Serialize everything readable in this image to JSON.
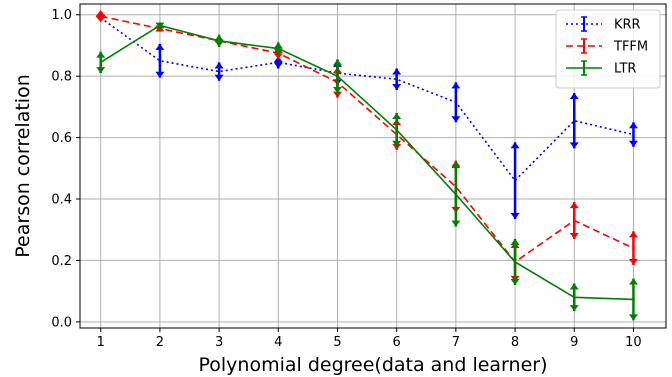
{
  "chart_data": {
    "type": "line",
    "title": "",
    "xlabel": "Polynomial degree(data and learner)",
    "ylabel": "Pearson correlation",
    "x": [
      1,
      2,
      3,
      4,
      5,
      6,
      7,
      8,
      9,
      10
    ],
    "xlim": [
      0.65,
      10.55
    ],
    "ylim": [
      -0.02,
      1.035
    ],
    "yticks": [
      "0.0",
      "0.2",
      "0.4",
      "0.6",
      "0.8",
      "1.0"
    ],
    "xticks": [
      "1",
      "2",
      "3",
      "4",
      "5",
      "6",
      "7",
      "8",
      "9",
      "10"
    ],
    "grid": true,
    "legend_position": "top-right",
    "series": [
      {
        "name": "KRR",
        "color": "#0000ff",
        "linestyle": "dotted",
        "values": [
          0.99,
          0.85,
          0.815,
          0.845,
          0.81,
          0.79,
          0.715,
          0.46,
          0.655,
          0.61
        ],
        "errors": [
          0.0,
          0.055,
          0.03,
          0.02,
          0.04,
          0.035,
          0.065,
          0.125,
          0.09,
          0.04
        ]
      },
      {
        "name": "TFFM",
        "color": "#ff0000",
        "linestyle": "dashed",
        "values": [
          0.995,
          0.955,
          0.915,
          0.875,
          0.78,
          0.61,
          0.44,
          0.195,
          0.33,
          0.24
        ],
        "errors": [
          0.0,
          0.01,
          0.015,
          0.02,
          0.05,
          0.05,
          0.085,
          0.065,
          0.06,
          0.055
        ]
      },
      {
        "name": "LTR",
        "color": "#008000",
        "linestyle": "solid",
        "values": [
          0.845,
          0.965,
          0.915,
          0.89,
          0.8,
          0.625,
          0.415,
          0.195,
          0.08,
          0.073
        ],
        "errors": [
          0.035,
          0.01,
          0.02,
          0.02,
          0.055,
          0.055,
          0.105,
          0.075,
          0.045,
          0.068
        ]
      }
    ]
  }
}
